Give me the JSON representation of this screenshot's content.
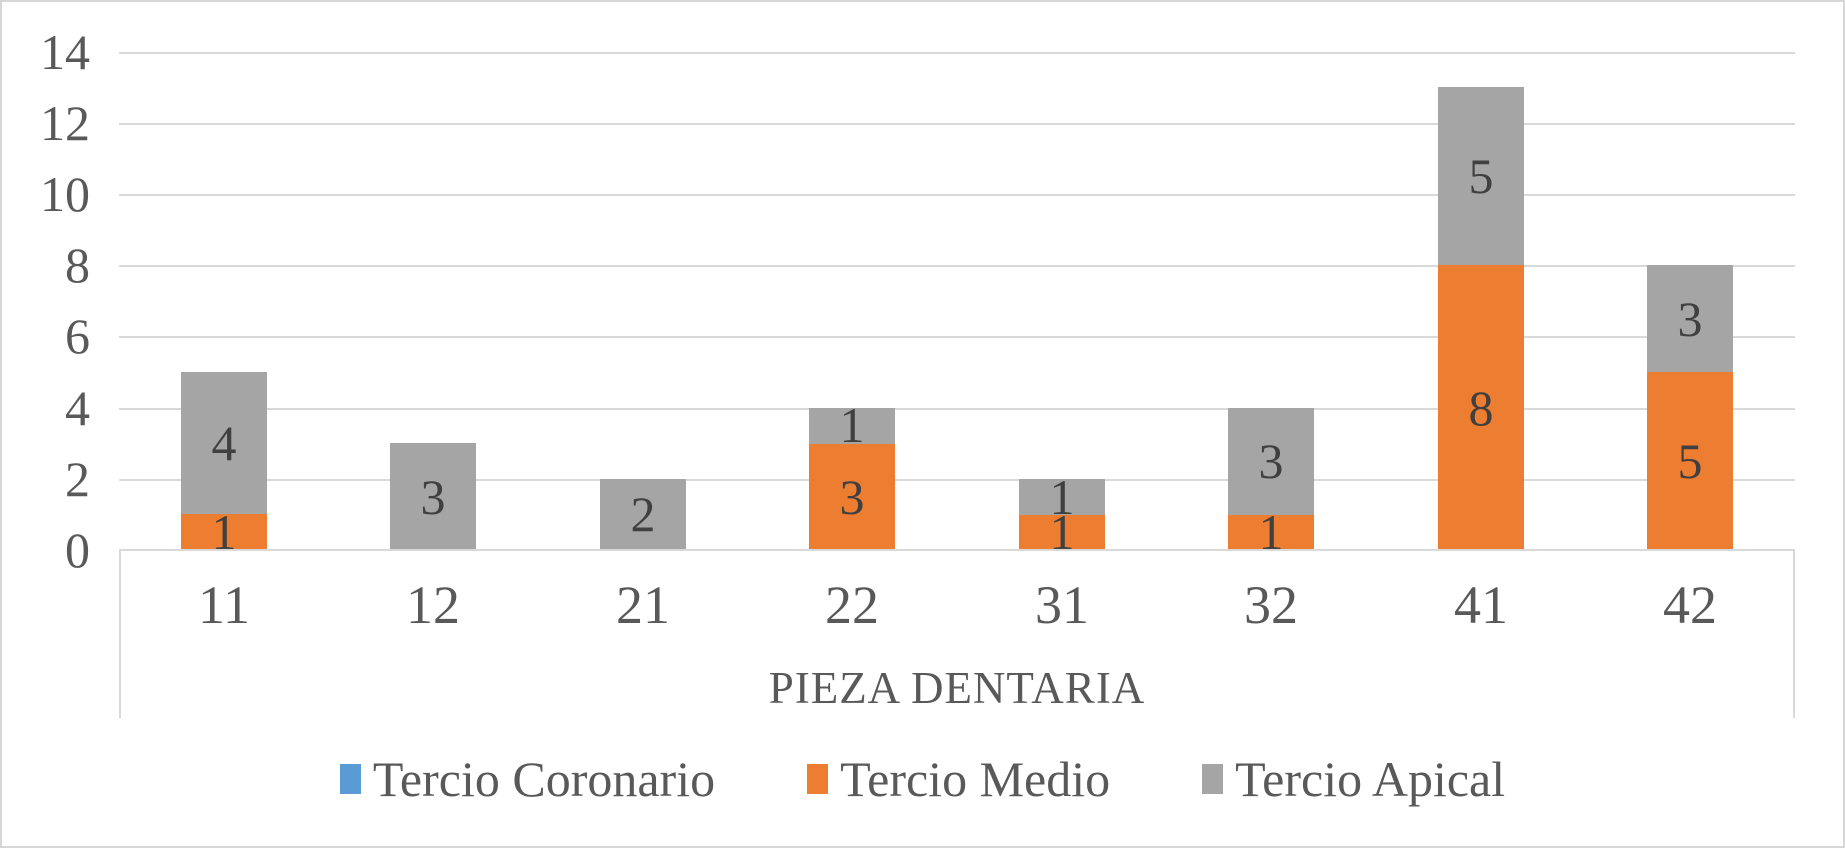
{
  "chart_data": {
    "type": "bar",
    "stacked": true,
    "orientation": "vertical",
    "categories": [
      "11",
      "12",
      "21",
      "22",
      "31",
      "32",
      "41",
      "42"
    ],
    "series": [
      {
        "name": "Tercio Coronario",
        "color": "#5B9BD5",
        "values": [
          0,
          0,
          0,
          0,
          0,
          0,
          0,
          0
        ]
      },
      {
        "name": "Tercio Medio",
        "color": "#ED7D31",
        "values": [
          1,
          0,
          0,
          3,
          1,
          1,
          8,
          5
        ]
      },
      {
        "name": "Tercio Apical",
        "color": "#A5A5A5",
        "values": [
          4,
          3,
          2,
          1,
          1,
          3,
          5,
          3
        ]
      }
    ],
    "totals": [
      5,
      3,
      2,
      4,
      2,
      4,
      13,
      8
    ],
    "title": "",
    "xlabel": "PIEZA DENTARIA",
    "ylabel": "",
    "ylim": [
      0,
      14
    ],
    "ytick_step": 2,
    "yticks": [
      "0",
      "2",
      "4",
      "6",
      "8",
      "10",
      "12",
      "14"
    ],
    "grid": true,
    "data_labels": true,
    "legend_position": "bottom",
    "colors": {
      "gridline": "#d9d9d9",
      "axis_text": "#595959",
      "data_label": "#404040",
      "chart_border": "#d6d6d6"
    }
  }
}
